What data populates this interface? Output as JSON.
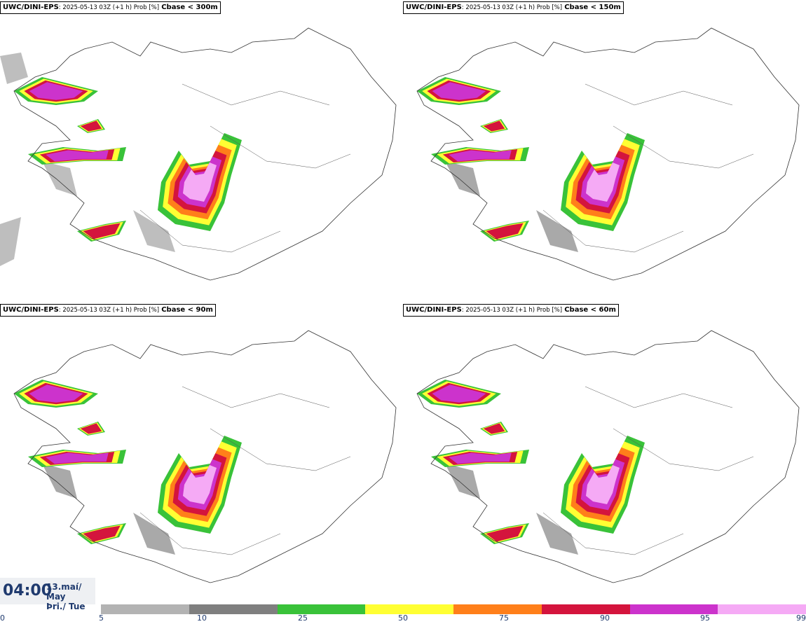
{
  "panels": [
    {
      "model": "UWC/DINI-EPS",
      "run": ": 2025-05-13 03Z (+1 h) Prob [%]",
      "threshold": "Cbase < 300m"
    },
    {
      "model": "UWC/DINI-EPS",
      "run": ": 2025-05-13 03Z (+1 h) Prob [%]",
      "threshold": "Cbase < 150m"
    },
    {
      "model": "UWC/DINI-EPS",
      "run": ": 2025-05-13 03Z (+1 h) Prob [%]",
      "threshold": "Cbase < 90m"
    },
    {
      "model": "UWC/DINI-EPS",
      "run": ": 2025-05-13 03Z (+1 h) Prob [%]",
      "threshold": "Cbase < 60m"
    }
  ],
  "time": "04:00",
  "date_line1": "13.maí/ May",
  "date_line2": "Þri./ Tue",
  "legend": {
    "ticks": [
      "0",
      "5",
      "10",
      "25",
      "50",
      "75",
      "90",
      "95",
      "99"
    ],
    "colors": [
      "#b3b3b3",
      "#7f7f7f",
      "#39c239",
      "#ffff33",
      "#ff7f1a",
      "#d4143d",
      "#cc33cc",
      "#f5aaf5"
    ]
  }
}
